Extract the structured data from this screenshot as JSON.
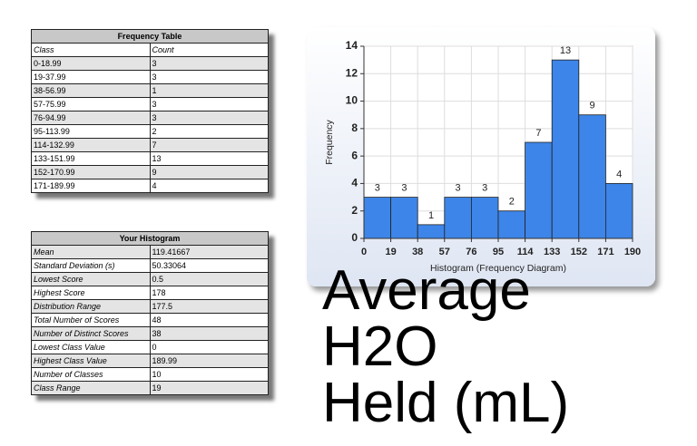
{
  "chart_data": {
    "type": "histogram",
    "bins": [
      0,
      19,
      38,
      57,
      76,
      95,
      114,
      133,
      152,
      171,
      190
    ],
    "values": [
      3,
      3,
      1,
      3,
      3,
      2,
      7,
      13,
      9,
      4
    ],
    "color": "#3d85e8",
    "xlabel": "Histogram (Frequency Diagram)",
    "ylabel": "Frequency",
    "xlim": [
      0,
      190
    ],
    "xticks": [
      0,
      19,
      38,
      57,
      76,
      95,
      114,
      133,
      152,
      171,
      190
    ],
    "ylim": [
      0,
      14
    ],
    "yticks": [
      0,
      2,
      4,
      6,
      8,
      10,
      12,
      14
    ],
    "grid": true
  },
  "frequency_table": {
    "title": "Frequency Table",
    "columns": [
      "Class",
      "Count"
    ],
    "rows": [
      [
        "0-18.99",
        "3"
      ],
      [
        "19-37.99",
        "3"
      ],
      [
        "38-56.99",
        "1"
      ],
      [
        "57-75.99",
        "3"
      ],
      [
        "76-94.99",
        "3"
      ],
      [
        "95-113.99",
        "2"
      ],
      [
        "114-132.99",
        "7"
      ],
      [
        "133-151.99",
        "13"
      ],
      [
        "152-170.99",
        "9"
      ],
      [
        "171-189.99",
        "4"
      ]
    ]
  },
  "stats_table": {
    "title": "Your Histogram",
    "rows": [
      [
        "Mean",
        "119.41667"
      ],
      [
        "Standard Deviation (s)",
        "50.33064"
      ],
      [
        "Lowest Score",
        "0.5"
      ],
      [
        "Highest Score",
        "178"
      ],
      [
        "Distribution Range",
        "177.5"
      ],
      [
        "Total Number of Scores",
        "48"
      ],
      [
        "Number of Distinct Scores",
        "38"
      ],
      [
        "Lowest Class Value",
        "0"
      ],
      [
        "Highest Class Value",
        "189.99"
      ],
      [
        "Number of Classes",
        "10"
      ],
      [
        "Class Range",
        "19"
      ]
    ]
  },
  "caption": [
    "Average",
    "H2O",
    "Held (mL)"
  ]
}
